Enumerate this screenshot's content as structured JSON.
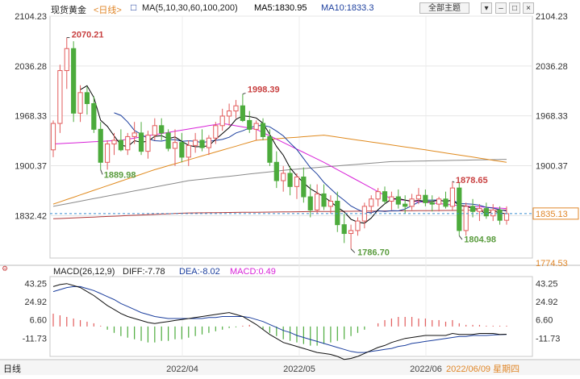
{
  "header": {
    "symbol": "现货黄金",
    "period_link": "<日线>",
    "ma_label": "MA(5,10,30,60,100,200)",
    "ma5": "MA5:1830.95",
    "ma10": "MA10:1833.3",
    "theme_button": "全部主题",
    "theme_dropdown_icon": "chevron-down-icon",
    "window_buttons": [
      "minimize-icon",
      "maximize-icon",
      "close-icon"
    ]
  },
  "price_axis": {
    "left_ticks": [
      "2104.23",
      "2036.28",
      "1968.33",
      "1900.37",
      "1832.42"
    ],
    "right_ticks": [
      "2104.23",
      "2036.28",
      "1968.33",
      "1900.37",
      "1832.42",
      "1774.53"
    ],
    "current_price": "1835.13"
  },
  "annotations": {
    "high1": "2070.21",
    "high2": "1998.39",
    "low1": "1889.98",
    "low2": "1786.70",
    "high3": "1878.65",
    "low3": "1804.98"
  },
  "macd": {
    "label": "MACD(26,12,9)",
    "diff": "DIFF:-7.78",
    "dea": "DEA:-8.02",
    "macd": "MACD:0.49",
    "ticks": [
      "43.25",
      "24.92",
      "6.60",
      "-11.73"
    ]
  },
  "time_axis": {
    "period": "日线",
    "labels": [
      "2022/04",
      "2022/05",
      "2022/06"
    ],
    "cursor_date": "2022/06/09 星期四"
  },
  "colors": {
    "up": "#e25c5c",
    "down": "#4cab3c",
    "ma5": "#000000",
    "ma10": "#1c3f9e",
    "ma30": "#d822d8",
    "ma60": "#e08a1e",
    "ma100": "#8a8a8a",
    "ma200": "#b03a3a",
    "accent": "#e0872a"
  },
  "chart_data": {
    "type": "candlestick",
    "y_range": [
      1774.53,
      2104.23
    ],
    "candles": [
      [
        1922,
        1962,
        1912,
        1958
      ],
      [
        1958,
        2038,
        1945,
        2030
      ],
      [
        2030,
        2075,
        2005,
        2060
      ],
      [
        2060,
        2070,
        1960,
        1972
      ],
      [
        1972,
        2010,
        1960,
        2000
      ],
      [
        2000,
        2008,
        1970,
        1985
      ],
      [
        1985,
        1995,
        1945,
        1950
      ],
      [
        1950,
        1960,
        1895,
        1905
      ],
      [
        1905,
        1935,
        1895,
        1930
      ],
      [
        1930,
        1945,
        1915,
        1935
      ],
      [
        1935,
        1950,
        1920,
        1922
      ],
      [
        1922,
        1945,
        1915,
        1940
      ],
      [
        1940,
        1960,
        1930,
        1945
      ],
      [
        1945,
        1960,
        1915,
        1920
      ],
      [
        1920,
        1948,
        1910,
        1942
      ],
      [
        1942,
        1965,
        1935,
        1955
      ],
      [
        1955,
        1965,
        1935,
        1945
      ],
      [
        1945,
        1950,
        1920,
        1924
      ],
      [
        1924,
        1950,
        1900,
        1932
      ],
      [
        1932,
        1945,
        1905,
        1912
      ],
      [
        1912,
        1935,
        1900,
        1928
      ],
      [
        1928,
        1945,
        1918,
        1935
      ],
      [
        1935,
        1950,
        1920,
        1925
      ],
      [
        1925,
        1942,
        1915,
        1938
      ],
      [
        1938,
        1960,
        1930,
        1955
      ],
      [
        1955,
        1978,
        1948,
        1968
      ],
      [
        1968,
        1985,
        1955,
        1975
      ],
      [
        1975,
        1990,
        1965,
        1982
      ],
      [
        1982,
        1998,
        1960,
        1962
      ],
      [
        1962,
        1975,
        1945,
        1950
      ],
      [
        1950,
        1962,
        1935,
        1958
      ],
      [
        1958,
        1965,
        1935,
        1940
      ],
      [
        1940,
        1950,
        1900,
        1905
      ],
      [
        1905,
        1920,
        1870,
        1880
      ],
      [
        1880,
        1900,
        1865,
        1890
      ],
      [
        1890,
        1900,
        1860,
        1872
      ],
      [
        1872,
        1890,
        1855,
        1885
      ],
      [
        1885,
        1898,
        1850,
        1858
      ],
      [
        1858,
        1875,
        1830,
        1840
      ],
      [
        1840,
        1875,
        1835,
        1862
      ],
      [
        1862,
        1875,
        1840,
        1845
      ],
      [
        1845,
        1860,
        1835,
        1852
      ],
      [
        1852,
        1865,
        1810,
        1820
      ],
      [
        1820,
        1835,
        1795,
        1808
      ],
      [
        1808,
        1820,
        1787,
        1812
      ],
      [
        1812,
        1830,
        1805,
        1825
      ],
      [
        1825,
        1850,
        1815,
        1845
      ],
      [
        1845,
        1860,
        1835,
        1855
      ],
      [
        1855,
        1870,
        1845,
        1865
      ],
      [
        1865,
        1872,
        1848,
        1852
      ],
      [
        1852,
        1865,
        1840,
        1858
      ],
      [
        1858,
        1868,
        1842,
        1848
      ],
      [
        1848,
        1860,
        1835,
        1845
      ],
      [
        1845,
        1862,
        1840,
        1855
      ],
      [
        1855,
        1870,
        1848,
        1860
      ],
      [
        1860,
        1868,
        1845,
        1850
      ],
      [
        1850,
        1860,
        1838,
        1848
      ],
      [
        1848,
        1858,
        1838,
        1855
      ],
      [
        1855,
        1865,
        1842,
        1845
      ],
      [
        1845,
        1879,
        1840,
        1870
      ],
      [
        1870,
        1878,
        1805,
        1812
      ],
      [
        1812,
        1850,
        1805,
        1845
      ],
      [
        1845,
        1855,
        1830,
        1838
      ],
      [
        1838,
        1848,
        1825,
        1842
      ],
      [
        1842,
        1850,
        1828,
        1832
      ],
      [
        1832,
        1848,
        1825,
        1840
      ],
      [
        1840,
        1845,
        1820,
        1826
      ],
      [
        1826,
        1845,
        1820,
        1835
      ]
    ],
    "macd_hist": [
      8,
      7,
      6,
      5,
      4,
      3,
      2,
      0.5,
      -2,
      -4,
      -6,
      -7,
      -8,
      -9,
      -10,
      -10,
      -9,
      -9,
      -8,
      -8,
      -7,
      -6,
      -5,
      -4,
      -3,
      -2,
      -1,
      -0.5,
      0.5,
      1,
      0,
      -2,
      -4,
      -6,
      -8,
      -9,
      -10,
      -11,
      -12,
      -12,
      -11,
      -10,
      -9,
      -8,
      -6,
      -4,
      -2,
      0,
      2,
      4,
      5,
      6,
      6,
      6,
      5,
      5,
      4,
      4,
      3,
      4,
      2,
      1,
      1,
      1,
      0.5,
      0.5,
      0.5,
      0.5
    ],
    "macd_diff": [
      40,
      42,
      43,
      41,
      39,
      35,
      31,
      26,
      21,
      17,
      13,
      10,
      8,
      6,
      4,
      3,
      4,
      5,
      6,
      7,
      8,
      9,
      10,
      11,
      12,
      13,
      14,
      12,
      10,
      6,
      2,
      -3,
      -8,
      -12,
      -16,
      -18,
      -20,
      -22,
      -24,
      -26,
      -27,
      -28,
      -30,
      -33,
      -32,
      -30,
      -27,
      -24,
      -21,
      -19,
      -16,
      -14,
      -12,
      -11,
      -10,
      -9,
      -9,
      -9,
      -9,
      -7,
      -8,
      -8,
      -8,
      -7,
      -7,
      -7,
      -8,
      -7.78
    ],
    "macd_dea": [
      35,
      37,
      39,
      40,
      40,
      38,
      36,
      33,
      30,
      27,
      23,
      20,
      17,
      14,
      12,
      10,
      9,
      8,
      8,
      8,
      8,
      8,
      8,
      9,
      9,
      10,
      10,
      10,
      10,
      9,
      7,
      5,
      2,
      -1,
      -4,
      -6,
      -9,
      -11,
      -13,
      -15,
      -17,
      -19,
      -21,
      -23,
      -25,
      -26,
      -26,
      -25,
      -24,
      -23,
      -22,
      -20,
      -19,
      -17,
      -16,
      -15,
      -14,
      -13,
      -12,
      -11,
      -10,
      -10,
      -9,
      -9,
      -9,
      -8.5,
      -8.2,
      -8.02
    ],
    "macd_range": [
      -30,
      50
    ]
  }
}
